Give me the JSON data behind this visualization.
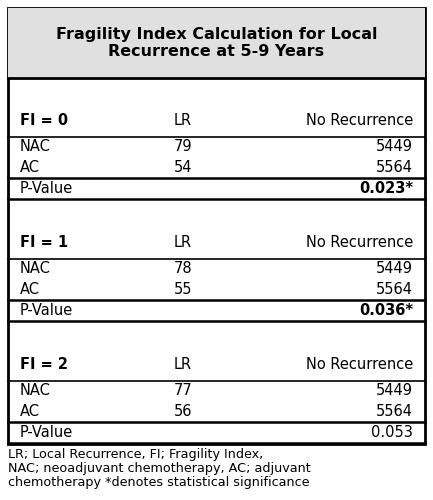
{
  "title": "Fragility Index Calculation for Local\nRecurrence at 5-9 Years",
  "title_fontsize": 11.5,
  "title_bg": "#e0e0e0",
  "table_bg": "#ffffff",
  "border_color": "#000000",
  "sections": [
    {
      "fi_label": "FI = 0",
      "col_headers": [
        "LR",
        "No Recurrence"
      ],
      "rows": [
        [
          "NAC",
          "79",
          "5449"
        ],
        [
          "AC",
          "54",
          "5564"
        ]
      ],
      "pvalue": "0.023*",
      "pvalue_bold": true
    },
    {
      "fi_label": "FI = 1",
      "col_headers": [
        "LR",
        "No Recurrence"
      ],
      "rows": [
        [
          "NAC",
          "78",
          "5449"
        ],
        [
          "AC",
          "55",
          "5564"
        ]
      ],
      "pvalue": "0.036*",
      "pvalue_bold": true
    },
    {
      "fi_label": "FI = 2",
      "col_headers": [
        "LR",
        "No Recurrence"
      ],
      "rows": [
        [
          "NAC",
          "77",
          "5449"
        ],
        [
          "AC",
          "56",
          "5564"
        ]
      ],
      "pvalue": "0.053",
      "pvalue_bold": false
    }
  ],
  "footnote_lines": [
    "LR; Local Recurrence, FI; Fragility Index,",
    "NAC; neoadjuvant chemotherapy, AC; adjuvant",
    "chemotherapy *denotes statistical significance"
  ],
  "footnote_fontsize": 9.2,
  "text_fontsize": 10.5
}
